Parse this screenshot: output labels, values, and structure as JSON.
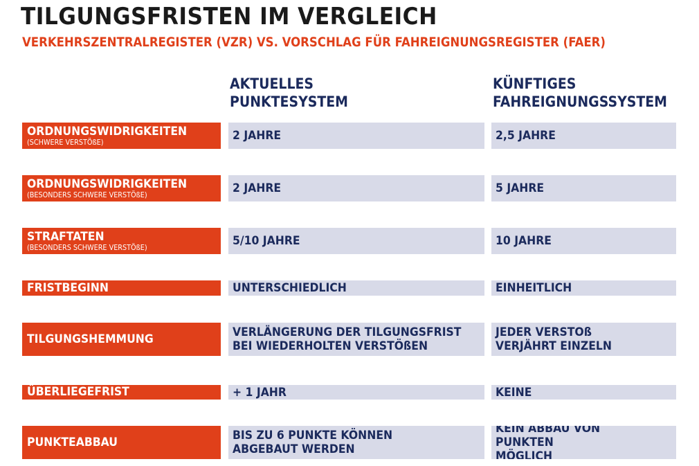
{
  "header": {
    "title": "TILGUNGSFRISTEN IM VERGLEICH",
    "subtitle": "VERKEHRSZENTRALREGISTER (VZR) VS. VORSCHLAG FÜR FAHREIGNUNGSREGISTER (FAER)"
  },
  "columns": {
    "current": "AKTUELLES\nPUNKTESYSTEM",
    "future": "KÜNFTIGES\nFAHREIGNUNGSSYSTEM"
  },
  "rows": [
    {
      "label": "ORDNUNGSWIDRIGKEITEN",
      "sublabel": "(SCHWERE VERSTÖßE)",
      "current": "2 JAHRE",
      "future": "2,5 JAHRE"
    },
    {
      "label": "ORDNUNGSWIDRIGKEITEN",
      "sublabel": "(BESONDERS SCHWERE VERSTÖßE)",
      "current": "2 JAHRE",
      "future": "5 JAHRE"
    },
    {
      "label": "STRAFTATEN",
      "sublabel": "(BESONDERS SCHWERE VERSTÖßE)",
      "current": "5/10 JAHRE",
      "future": "10 JAHRE"
    },
    {
      "label": "FRISTBEGINN",
      "current": "UNTERSCHIEDLICH",
      "future": "EINHEITLICH"
    },
    {
      "label": "TILGUNGSHEMMUNG",
      "current": "VERLÄNGERUNG DER TILGUNGSFRIST\nBEI WIEDERHOLTEN VERSTÖßEN",
      "future": "JEDER VERSTOß\nVERJÄHRT EINZELN"
    },
    {
      "label": "ÜBERLIEGEFRIST",
      "current": "+ 1 JAHR",
      "future": "KEINE"
    },
    {
      "label": "PUNKTEABBAU",
      "current": "BIS ZU 6 PUNKTE KÖNNEN\nABGEBAUT WERDEN",
      "future": "KEIN ABBAU VON PUNKTEN\nMÖGLICH"
    }
  ],
  "colors": {
    "accent": "#e0401a",
    "cell_bg": "#d8dae8",
    "navy": "#1b2a5c"
  }
}
